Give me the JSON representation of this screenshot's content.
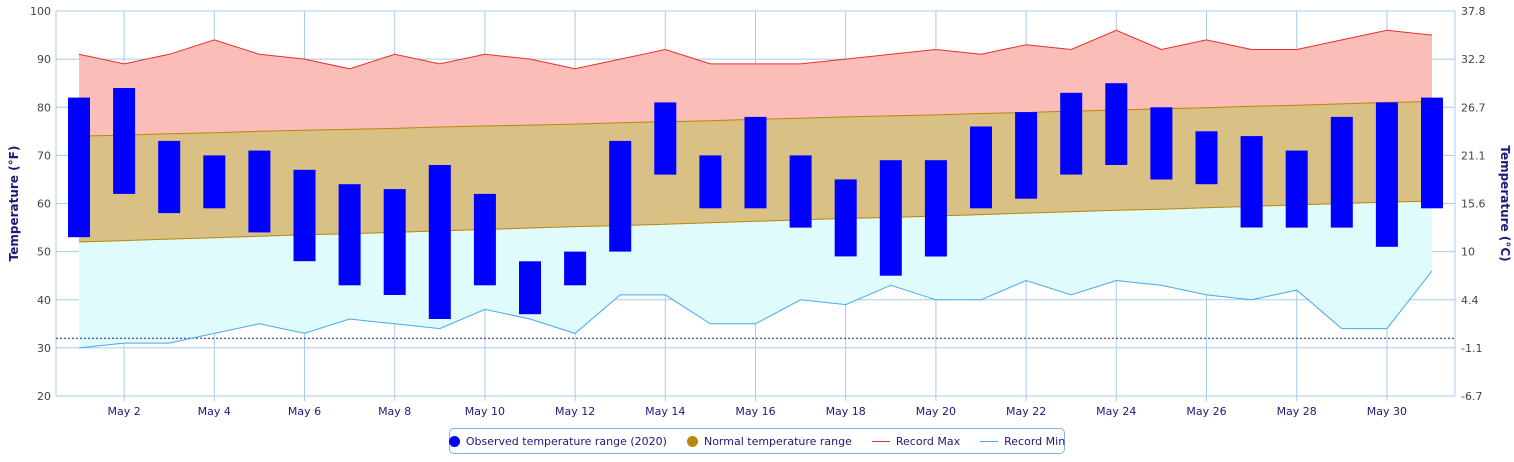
{
  "chart_data": {
    "type": "bar",
    "title": "",
    "xlabel": "",
    "ylabel": "Temperature (°F)",
    "ylabel_right": "Temperature (°C)",
    "ylim": [
      20,
      100
    ],
    "y_ticks": [
      20,
      30,
      40,
      50,
      60,
      70,
      80,
      90,
      100
    ],
    "y2_tick_labels": [
      "-6.7",
      "-1.1",
      "4.4",
      "10",
      "15.6",
      "21.1",
      "26.7",
      "32.2",
      "37.8"
    ],
    "x_tick_labels": [
      "May 2",
      "May 4",
      "May 6",
      "May 8",
      "May 10",
      "May 12",
      "May 14",
      "May 16",
      "May 18",
      "May 20",
      "May 22",
      "May 24",
      "May 26",
      "May 28",
      "May 30"
    ],
    "x_tick_days": [
      2,
      4,
      6,
      8,
      10,
      12,
      14,
      16,
      18,
      20,
      22,
      24,
      26,
      28,
      30
    ],
    "days": [
      1,
      2,
      3,
      4,
      5,
      6,
      7,
      8,
      9,
      10,
      11,
      12,
      13,
      14,
      15,
      16,
      17,
      18,
      19,
      20,
      21,
      22,
      23,
      24,
      25,
      26,
      27,
      28,
      29,
      30,
      31
    ],
    "freezing_line": 32,
    "grid": true,
    "legend_position": "bottom-center",
    "colors": {
      "observed": "#0000ff",
      "normal_fill": "#d9c084",
      "normal_line": "#b8860b",
      "record_max_line": "#e8302a",
      "record_max_fill": "#fbbdb7",
      "record_min_line": "#44aaee",
      "record_min_fill": "#e0fbfb",
      "freezing_line": "#1a1aa0",
      "grid": "#a8cbe8"
    },
    "series": [
      {
        "name": "Observed temperature range (2020)",
        "low": [
          53,
          62,
          58,
          59,
          54,
          48,
          43,
          41,
          36,
          43,
          37,
          43,
          50,
          66,
          59,
          59,
          55,
          49,
          45,
          49,
          59,
          61,
          66,
          68,
          65,
          64,
          55,
          55,
          55,
          51,
          59
        ],
        "high": [
          82,
          84,
          73,
          70,
          71,
          67,
          64,
          63,
          68,
          62,
          48,
          50,
          73,
          81,
          70,
          78,
          70,
          65,
          69,
          69,
          76,
          79,
          83,
          85,
          80,
          75,
          74,
          71,
          78,
          81,
          82
        ]
      },
      {
        "name": "Normal temperature range",
        "low": [
          52,
          52.3,
          52.6,
          52.9,
          53.2,
          53.5,
          53.7,
          54,
          54.3,
          54.6,
          54.9,
          55.2,
          55.4,
          55.7,
          56,
          56.3,
          56.6,
          56.9,
          57.1,
          57.4,
          57.7,
          58,
          58.3,
          58.6,
          58.8,
          59.1,
          59.4,
          59.7,
          60,
          60.3,
          60.5
        ],
        "high": [
          74,
          74.2,
          74.5,
          74.7,
          75,
          75.2,
          75.4,
          75.6,
          75.9,
          76.1,
          76.3,
          76.5,
          76.8,
          77,
          77.2,
          77.5,
          77.7,
          78,
          78.2,
          78.4,
          78.7,
          78.9,
          79.2,
          79.4,
          79.7,
          79.9,
          80.2,
          80.4,
          80.7,
          81,
          81.2
        ]
      },
      {
        "name": "Record Max",
        "values": [
          91,
          89,
          91,
          94,
          91,
          90,
          88,
          91,
          89,
          91,
          90,
          88,
          90,
          92,
          89,
          89,
          89,
          90,
          91,
          92,
          91,
          93,
          92,
          96,
          92,
          94,
          92,
          92,
          94,
          96,
          95
        ]
      },
      {
        "name": "Record Min",
        "values": [
          30,
          31,
          31,
          33,
          35,
          33,
          36,
          35,
          34,
          38,
          36,
          33,
          41,
          41,
          35,
          35,
          40,
          39,
          43,
          40,
          40,
          44,
          41,
          44,
          43,
          41,
          40,
          42,
          34,
          34,
          46
        ]
      }
    ]
  }
}
